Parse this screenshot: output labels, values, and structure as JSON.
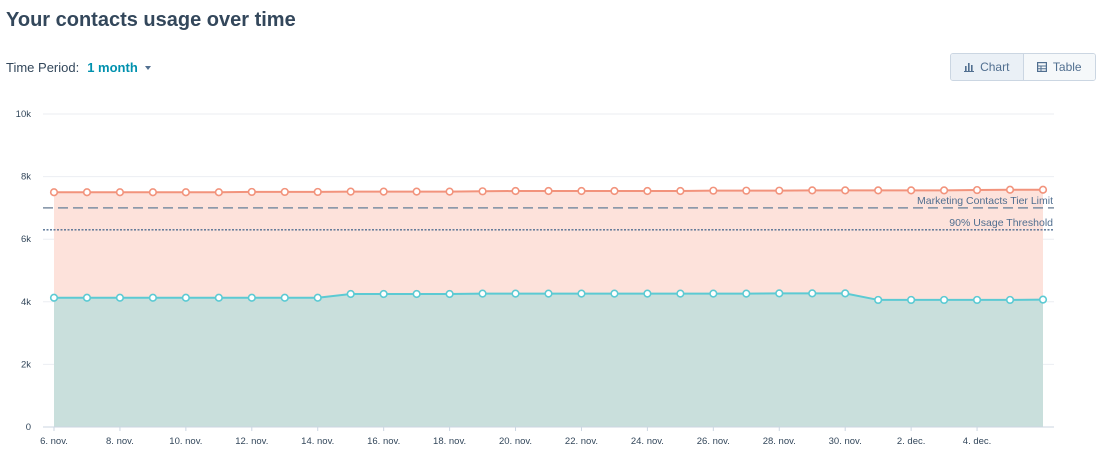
{
  "header": {
    "title": "Your contacts usage over time"
  },
  "time_period": {
    "label": "Time Period:",
    "value": "1 month"
  },
  "view_toggle": {
    "chart_label": "Chart",
    "table_label": "Table",
    "active": "Chart"
  },
  "colors": {
    "marketing": "#f2937c",
    "marketing_fill": "#fde2db",
    "non_marketing": "#5ccad3",
    "non_marketing_fill": "#c9dfdc",
    "tier_limit": "#7d8fa3",
    "threshold": "#506e91"
  },
  "chart_data": {
    "type": "area",
    "x": [
      "6. nov.",
      "7. nov.",
      "8. nov.",
      "9. nov.",
      "10. nov.",
      "11. nov.",
      "12. nov.",
      "13. nov.",
      "14. nov.",
      "15. nov.",
      "16. nov.",
      "17. nov.",
      "18. nov.",
      "19. nov.",
      "20. nov.",
      "21. nov.",
      "22. nov.",
      "23. nov.",
      "24. nov.",
      "25. nov.",
      "26. nov.",
      "27. nov.",
      "28. nov.",
      "29. nov.",
      "30. nov.",
      "1. dec.",
      "2. dec.",
      "3. dec.",
      "4. dec.",
      "5. dec.",
      "6. dec."
    ],
    "x_tick_labels": [
      "6. nov.",
      "8. nov.",
      "10. nov.",
      "12. nov.",
      "14. nov.",
      "16. nov.",
      "18. nov.",
      "20. nov.",
      "22. nov.",
      "24. nov.",
      "26. nov.",
      "28. nov.",
      "30. nov.",
      "2. dec.",
      "4. dec."
    ],
    "y_tick_labels": [
      "0",
      "2k",
      "4k",
      "6k",
      "8k",
      "10k"
    ],
    "ylim": [
      0,
      10000
    ],
    "grid": true,
    "series": [
      {
        "values": [
          7500,
          7500,
          7500,
          7500,
          7500,
          7500,
          7510,
          7510,
          7510,
          7520,
          7520,
          7520,
          7520,
          7530,
          7540,
          7540,
          7540,
          7540,
          7540,
          7540,
          7550,
          7550,
          7550,
          7560,
          7560,
          7560,
          7560,
          7560,
          7570,
          7580,
          7580
        ]
      },
      {
        "values": [
          4130,
          4130,
          4130,
          4130,
          4130,
          4130,
          4130,
          4130,
          4130,
          4250,
          4250,
          4250,
          4250,
          4260,
          4260,
          4260,
          4260,
          4260,
          4260,
          4260,
          4260,
          4260,
          4270,
          4270,
          4270,
          4060,
          4060,
          4060,
          4060,
          4060,
          4070
        ]
      }
    ],
    "reference_lines": [
      {
        "name": "Marketing Contacts Tier Limit",
        "value": 7000,
        "style": "dashed"
      },
      {
        "name": "90% Usage Threshold",
        "value": 6300,
        "style": "dotted"
      }
    ]
  }
}
